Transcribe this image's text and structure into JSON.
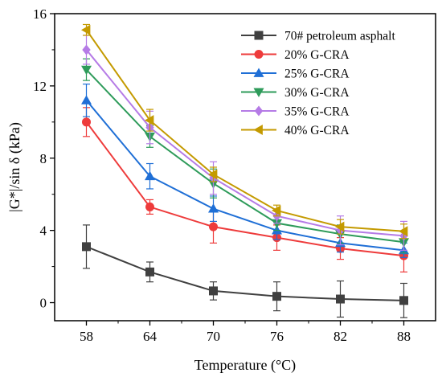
{
  "chart_data": {
    "type": "line",
    "xlabel": "Temperature  (°C)",
    "ylabel": "|G*|/sin δ  (kPa)",
    "x": [
      58,
      64,
      70,
      76,
      82,
      88
    ],
    "xlim": [
      55,
      91
    ],
    "ylim": [
      -1,
      16
    ],
    "x_ticks": [
      58,
      64,
      70,
      76,
      82,
      88
    ],
    "y_ticks": [
      0,
      4,
      8,
      12,
      16
    ],
    "grid": false,
    "legend_position": "top-right",
    "series": [
      {
        "name": "70# petroleum asphalt",
        "color": "#404040",
        "marker": "square",
        "values": [
          3.1,
          1.7,
          0.65,
          0.35,
          0.2,
          0.12
        ],
        "errors": [
          1.2,
          0.55,
          0.5,
          0.8,
          1.0,
          0.95
        ]
      },
      {
        "name": "20% G-CRA",
        "color": "#ee3b3b",
        "marker": "circle",
        "values": [
          10.0,
          5.3,
          4.2,
          3.6,
          3.0,
          2.6
        ],
        "errors": [
          0.8,
          0.4,
          0.9,
          0.7,
          0.6,
          0.9
        ]
      },
      {
        "name": "25% G-CRA",
        "color": "#1f6fd6",
        "marker": "triangle-up",
        "values": [
          11.2,
          7.0,
          5.2,
          4.0,
          3.3,
          2.9
        ],
        "errors": [
          0.9,
          0.7,
          0.7,
          0.5,
          0.5,
          0.4
        ]
      },
      {
        "name": "30% G-CRA",
        "color": "#2e9b5a",
        "marker": "triangle-down",
        "values": [
          12.9,
          9.2,
          6.6,
          4.4,
          3.8,
          3.35
        ],
        "errors": [
          0.6,
          0.6,
          0.8,
          0.4,
          0.5,
          0.6
        ]
      },
      {
        "name": "35% G-CRA",
        "color": "#b57be6",
        "marker": "diamond",
        "values": [
          14.0,
          9.7,
          6.9,
          4.8,
          4.0,
          3.7
        ],
        "errors": [
          0.8,
          0.9,
          0.9,
          0.4,
          0.8,
          0.8
        ]
      },
      {
        "name": "40% G-CRA",
        "color": "#c49a00",
        "marker": "triangle-left",
        "values": [
          15.1,
          10.1,
          7.1,
          5.1,
          4.2,
          3.95
        ],
        "errors": [
          0.3,
          0.6,
          0.4,
          0.3,
          0.4,
          0.4
        ]
      }
    ]
  }
}
